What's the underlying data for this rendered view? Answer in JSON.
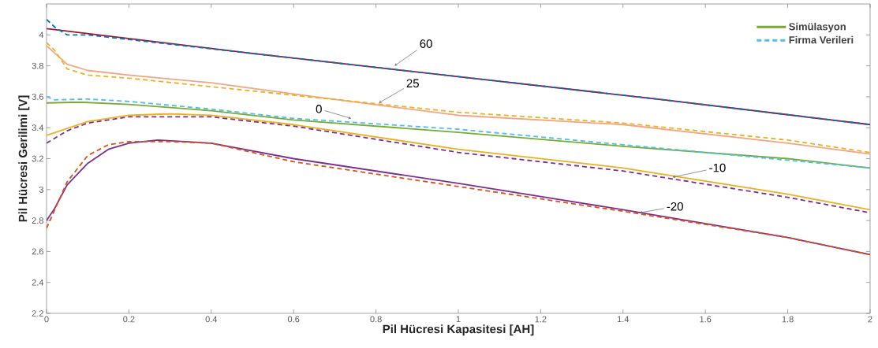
{
  "chart_data": {
    "type": "line",
    "xlabel": "Pil Hücresi Kapasitesi [AH]",
    "ylabel": "Pil Hücresi Gerilimi [V]",
    "xlim": [
      0,
      2
    ],
    "ylim": [
      2.2,
      4.2
    ],
    "xticks": [
      0,
      0.2,
      0.4,
      0.6,
      0.8,
      1,
      1.2,
      1.4,
      1.6,
      1.8,
      2
    ],
    "yticks": [
      2.2,
      2.4,
      2.6,
      2.8,
      3,
      3.2,
      3.4,
      3.6,
      3.8,
      4
    ],
    "grid": false,
    "legend": "top right",
    "marker": "none",
    "series": [
      {
        "name": "Simülasyon",
        "color": "#77ac30",
        "line_style": "solid",
        "x": [
          0,
          0.08,
          0.2,
          0.4,
          0.6,
          1.0,
          1.4,
          1.8,
          2.0
        ],
        "values": [
          3.56,
          3.565,
          3.55,
          3.51,
          3.45,
          3.37,
          3.28,
          3.2,
          3.14
        ]
      },
      {
        "name": "Firma Verileri",
        "color": "#4dbeee",
        "line_style": "dashed",
        "x": [
          0,
          0.02,
          0.1,
          0.2,
          0.4,
          0.6,
          1.0,
          1.4,
          1.8,
          2.0
        ],
        "values": [
          3.6,
          3.58,
          3.585,
          3.57,
          3.52,
          3.46,
          3.39,
          3.29,
          3.19,
          3.14
        ]
      },
      {
        "color": "#a2142f",
        "line_style": "solid",
        "x": [
          0,
          0.5,
          1.0,
          1.5,
          2.0
        ],
        "values": [
          4.04,
          3.88,
          3.73,
          3.58,
          3.42
        ]
      },
      {
        "color": "#0072bd",
        "line_style": "dashed",
        "x": [
          0,
          0.02,
          0.05,
          0.1,
          0.3,
          0.5,
          1.0,
          1.5,
          2.0
        ],
        "values": [
          4.1,
          4.05,
          4.0,
          4.0,
          3.94,
          3.88,
          3.73,
          3.58,
          3.42
        ]
      },
      {
        "color": "#f4a582",
        "line_style": "solid",
        "x": [
          0,
          0.05,
          0.1,
          0.2,
          0.4,
          0.65,
          1.0,
          1.4,
          1.8,
          2.0
        ],
        "values": [
          3.93,
          3.81,
          3.77,
          3.74,
          3.69,
          3.6,
          3.48,
          3.42,
          3.3,
          3.23
        ]
      },
      {
        "color": "#edb120",
        "line_style": "dashed",
        "x": [
          0,
          0.02,
          0.05,
          0.1,
          0.2,
          0.6,
          1.0,
          1.4,
          1.8,
          2.0
        ],
        "values": [
          3.95,
          3.9,
          3.78,
          3.74,
          3.72,
          3.61,
          3.5,
          3.43,
          3.32,
          3.24
        ]
      },
      {
        "color": "#edb120",
        "line_style": "solid",
        "x": [
          0,
          0.1,
          0.2,
          0.3,
          0.4,
          0.6,
          1.0,
          1.4,
          1.8,
          2.0
        ],
        "values": [
          3.35,
          3.44,
          3.48,
          3.49,
          3.48,
          3.42,
          3.26,
          3.14,
          2.97,
          2.87
        ]
      },
      {
        "color": "#7e2f8e",
        "line_style": "dashed",
        "x": [
          0,
          0.05,
          0.1,
          0.2,
          0.4,
          0.6,
          1.0,
          1.4,
          1.8,
          2.0
        ],
        "values": [
          3.3,
          3.38,
          3.43,
          3.47,
          3.47,
          3.41,
          3.24,
          3.12,
          2.95,
          2.85
        ]
      },
      {
        "color": "#7e2f8e",
        "line_style": "solid",
        "x": [
          0,
          0.02,
          0.05,
          0.1,
          0.15,
          0.2,
          0.27,
          0.4,
          0.6,
          1.0,
          1.4,
          1.8,
          2.0
        ],
        "values": [
          2.8,
          2.88,
          3.03,
          3.17,
          3.26,
          3.3,
          3.32,
          3.3,
          3.2,
          3.04,
          2.87,
          2.69,
          2.58
        ]
      },
      {
        "color": "#d95319",
        "line_style": "dashed",
        "x": [
          0,
          0.02,
          0.05,
          0.1,
          0.15,
          0.2,
          0.3,
          0.4,
          0.6,
          1.0,
          1.4,
          1.8,
          2.0
        ],
        "values": [
          2.75,
          2.87,
          3.05,
          3.22,
          3.29,
          3.31,
          3.31,
          3.3,
          3.18,
          3.02,
          2.86,
          2.69,
          2.58
        ]
      }
    ],
    "annotations": [
      {
        "text": "60",
        "x": 0.845,
        "y": 3.8
      },
      {
        "text": "25",
        "x": 0.807,
        "y": 3.56
      },
      {
        "text": "0",
        "x": 0.74,
        "y": 3.46
      },
      {
        "text": "-10",
        "x": 1.52,
        "y": 3.08
      },
      {
        "text": "-20",
        "x": 1.44,
        "y": 2.85
      }
    ]
  }
}
